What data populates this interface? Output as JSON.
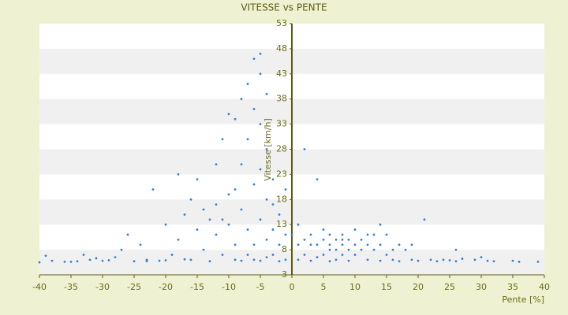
{
  "chart_data": {
    "type": "scatter",
    "title": "VITESSE vs PENTE",
    "x_label": "Pente [%]",
    "y_label": "Vitesse [km/h]",
    "color": "#3a7fd0",
    "xlim": [
      -40,
      40
    ],
    "xticks": [
      -40,
      -35,
      -30,
      -25,
      -20,
      -15,
      -10,
      -5,
      0,
      5,
      10,
      15,
      20,
      25,
      30,
      35,
      40
    ],
    "ylim": [
      3,
      53
    ],
    "yticks": [
      3,
      8,
      13,
      18,
      23,
      28,
      33,
      38,
      43,
      48,
      53
    ],
    "grid": true,
    "x": [
      -40,
      -38,
      -36,
      -34,
      -33,
      -31,
      -30,
      -28,
      -27,
      -26,
      -25,
      -24,
      -23,
      -22,
      -21,
      -20,
      -19,
      -18,
      -18,
      -17,
      -16,
      -15,
      -15,
      -14,
      -14,
      -13,
      -13,
      -12,
      -12,
      -11,
      -11,
      -10,
      -10,
      -10,
      -9,
      -9,
      -9,
      -8,
      -8,
      -8,
      -8,
      -7,
      -7,
      -7,
      -7,
      -6,
      -6,
      -6,
      -6,
      -6,
      -5,
      -5,
      -5,
      -5,
      -5,
      -5,
      -4,
      -4,
      -4,
      -4,
      -4,
      -3,
      -3,
      -3,
      -2,
      -2,
      -2,
      -1,
      -1,
      -1,
      1,
      1,
      1,
      2,
      2,
      2,
      3,
      3,
      4,
      4,
      4,
      5,
      5,
      5,
      6,
      6,
      6,
      7,
      7,
      7,
      8,
      8,
      8,
      9,
      9,
      9,
      10,
      10,
      10,
      11,
      11,
      12,
      12,
      13,
      13,
      14,
      14,
      15,
      15,
      16,
      16,
      17,
      17,
      18,
      19,
      20,
      21,
      22,
      23,
      24,
      26,
      26,
      27,
      29,
      30,
      31,
      32,
      35,
      36,
      39,
      -39,
      -35,
      -32,
      -29,
      -23,
      -20,
      -17,
      -16,
      -12,
      -11,
      -9,
      -3,
      0,
      3,
      6,
      8,
      12,
      14,
      19,
      25
    ],
    "values": [
      5.5,
      5.8,
      5.6,
      5.7,
      7,
      6.3,
      5.8,
      6.5,
      8,
      11,
      5.7,
      9,
      6,
      20,
      5.8,
      13,
      7,
      23,
      10,
      15,
      6,
      12,
      22,
      16,
      8,
      14,
      5.7,
      17,
      11,
      30,
      7,
      35,
      19,
      13,
      34,
      9,
      6,
      38,
      25,
      16,
      5.8,
      41,
      30,
      12,
      7,
      46,
      36,
      21,
      9,
      6,
      47,
      43,
      33,
      24,
      14,
      5.8,
      39,
      28,
      18,
      10,
      6.5,
      22,
      12,
      7,
      15,
      9,
      5.7,
      20,
      11,
      6,
      13,
      9,
      6,
      28,
      10,
      7,
      11,
      5.8,
      22,
      9,
      6.5,
      12,
      10,
      7,
      11,
      9,
      5.7,
      10,
      8,
      6,
      11,
      9,
      7,
      10,
      8,
      5.8,
      12,
      9,
      7,
      10,
      8,
      9,
      6,
      11,
      8,
      13,
      9,
      11,
      7,
      8,
      6,
      9,
      5.7,
      8,
      6,
      5.8,
      14,
      6,
      5.7,
      6,
      8,
      5.7,
      6.2,
      6,
      6.5,
      5.8,
      5.7,
      5.8,
      5.6,
      5.6,
      6.8,
      5.6,
      6,
      5.9,
      5.7,
      5.9,
      6.1,
      18,
      25,
      14,
      20,
      17,
      11,
      9,
      8,
      10,
      11,
      5.8,
      9,
      5.9
    ]
  }
}
